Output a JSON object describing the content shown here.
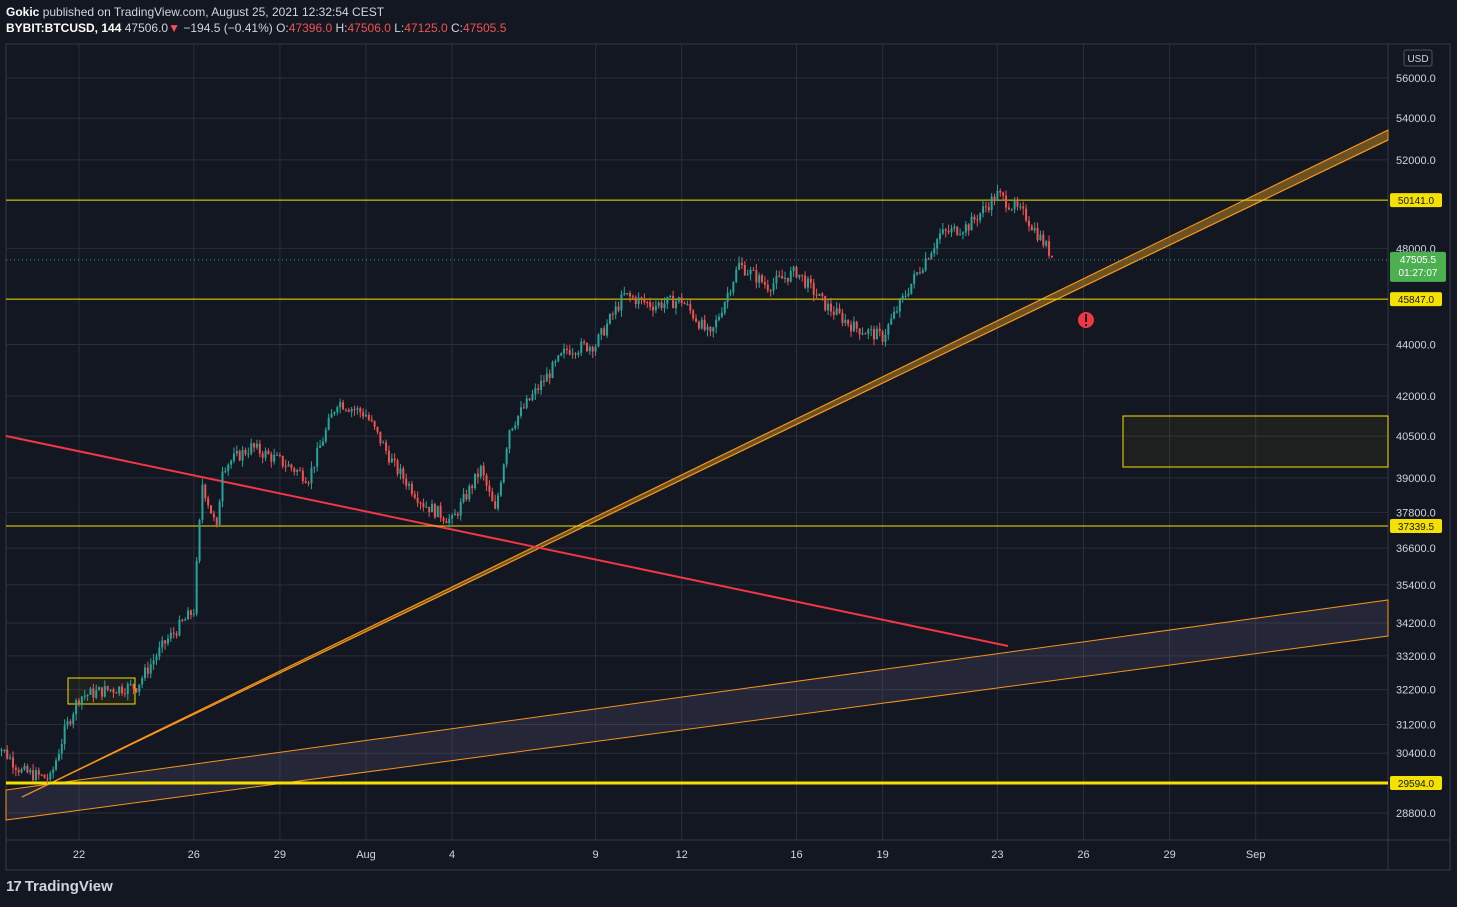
{
  "header": {
    "author": "Gokic",
    "published_text": "published on TradingView.com, August 25, 2021 12:32:54 CEST",
    "symbol": "BYBIT:BTCUSD",
    "interval": "144",
    "last": "47506.0",
    "change_arrow": "▼",
    "change": "−194.5 (−0.41%)",
    "o_label": "O:",
    "o": "47396.0",
    "h_label": "H:",
    "h": "47506.0",
    "l_label": "L:",
    "l": "47125.0",
    "c_label": "C:",
    "c": "47505.5"
  },
  "footer": {
    "logo_text": "TradingView",
    "logo_icon": "tradingview-logo-icon"
  },
  "colors": {
    "background": "#131722",
    "grid": "#2a2e39",
    "text": "#d1d4dc",
    "up": "#26a69a",
    "down": "#ef5350",
    "hline": "#f5e100",
    "orange": "#f7931a",
    "trend_red": "#f23645",
    "price_tag": "#4caf50"
  },
  "chart_data": {
    "type": "candlestick",
    "currency": "USD",
    "y_axis": {
      "scale": "log",
      "ticks": [
        "56000.0",
        "54000.0",
        "52000.0",
        "48000.0",
        "44000.0",
        "42000.0",
        "40500.0",
        "39000.0",
        "37800.0",
        "36600.0",
        "35400.0",
        "34200.0",
        "33200.0",
        "32200.0",
        "31200.0",
        "30400.0",
        "28800.0"
      ]
    },
    "x_axis": {
      "ticks": [
        "22",
        "26",
        "29",
        "Aug",
        "4",
        "9",
        "12",
        "16",
        "19",
        "23",
        "26",
        "29",
        "Sep"
      ]
    },
    "current_price": {
      "value": "47505.5",
      "countdown": "01:27:07"
    },
    "horizontal_levels": [
      "50141.0",
      "45847.0",
      "37339.5",
      "29594.0"
    ],
    "price_path": [
      [
        "Jul 19",
        30800
      ],
      [
        "Jul 20",
        29900
      ],
      [
        "Jul 21",
        29700
      ],
      [
        "Jul 21.5",
        31000
      ],
      [
        "Jul 22",
        32000
      ],
      [
        "Jul 23",
        32200
      ],
      [
        "Jul 24",
        32300
      ],
      [
        "Jul 25",
        33600
      ],
      [
        "Jul 26",
        34600
      ],
      [
        "Jul 26.3",
        38800
      ],
      [
        "Jul 26.8",
        37200
      ],
      [
        "Jul 27",
        39400
      ],
      [
        "Jul 28",
        40100
      ],
      [
        "Jul 29",
        39600
      ],
      [
        "Jul 30",
        39000
      ],
      [
        "Jul 31",
        41800
      ],
      [
        "Aug 1",
        41300
      ],
      [
        "Aug 2",
        39400
      ],
      [
        "Aug 3",
        38100
      ],
      [
        "Aug 4",
        37500
      ],
      [
        "Aug 5",
        39300
      ],
      [
        "Aug 5.5",
        37800
      ],
      [
        "Aug 6",
        40800
      ],
      [
        "Aug 7",
        42300
      ],
      [
        "Aug 8",
        43800
      ],
      [
        "Aug 9",
        44000
      ],
      [
        "Aug 10",
        46000
      ],
      [
        "Aug 11",
        45600
      ],
      [
        "Aug 12",
        45800
      ],
      [
        "Aug 13",
        44300
      ],
      [
        "Aug 14",
        47300
      ],
      [
        "Aug 15",
        46400
      ],
      [
        "Aug 16",
        47000
      ],
      [
        "Aug 17",
        45600
      ],
      [
        "Aug 18",
        44700
      ],
      [
        "Aug 19",
        44300
      ],
      [
        "Aug 20",
        46500
      ],
      [
        "Aug 21",
        48600
      ],
      [
        "Aug 22",
        49000
      ],
      [
        "Aug 23",
        50400
      ],
      [
        "Aug 24",
        49400
      ],
      [
        "Aug 25",
        47500
      ]
    ]
  }
}
